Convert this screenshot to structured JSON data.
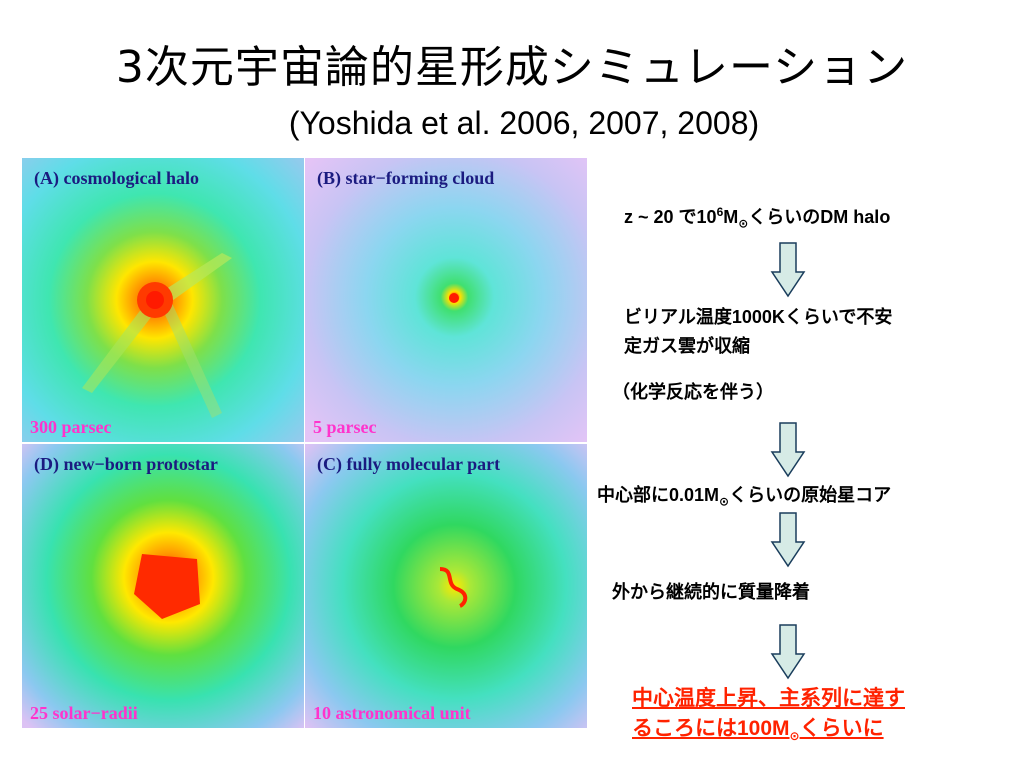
{
  "slide": {
    "title": "3次元宇宙論的星形成シミュレーション",
    "subtitle": "(Yoshida et al. 2006, 2007, 2008)"
  },
  "panels": [
    {
      "label": "(A) cosmological halo",
      "scale": "300 parsec"
    },
    {
      "label": "(B) star−forming cloud",
      "scale": "5 parsec"
    },
    {
      "label": "(D) new−born protostar",
      "scale": "25 solar−radii"
    },
    {
      "label": "(C) fully molecular part",
      "scale": "10 astronomical unit"
    }
  ],
  "steps": {
    "s1_pre": "z ~ 20 で10",
    "s1_sup": "6",
    "s1_mid": "M",
    "s1_sub": "⊙",
    "s1_post": "くらいのDM halo",
    "s2_line1": "ビリアル温度1000Kくらいで不安",
    "s2_line2": "定ガス雲が収縮",
    "s3": "（化学反応を伴う）",
    "s4_pre": "中心部に0.01M",
    "s4_sub": "⊙",
    "s4_post": "くらいの原始星コア",
    "s5": "外から継続的に質量降着",
    "final_line1": "中心温度上昇、主系列に達す",
    "final_line2_pre": "るころには100M",
    "final_line2_sub": "⊙",
    "final_line2_post": "くらいに"
  },
  "colors": {
    "panel_label": "#1b1b80",
    "panel_scale": "#ff33cc",
    "arrow_fill": "#d6ebe6",
    "final_text": "#ff2200"
  }
}
